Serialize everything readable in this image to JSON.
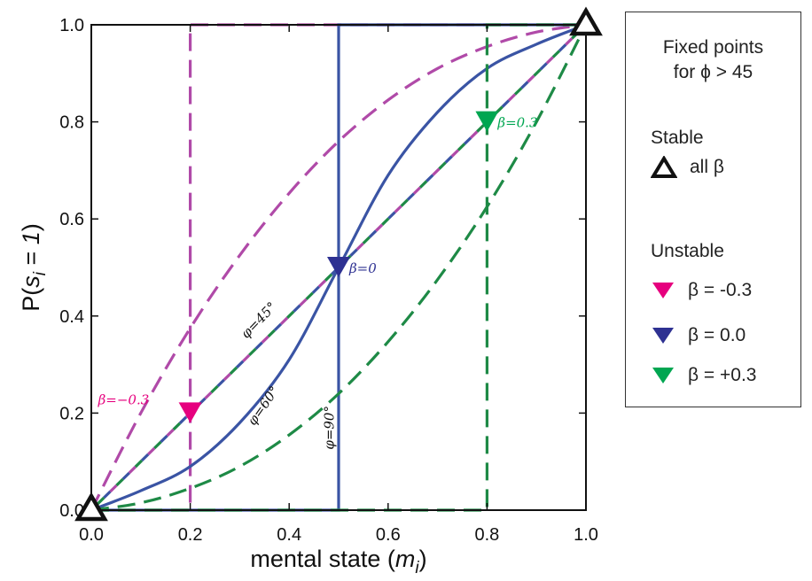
{
  "chart_data": {
    "type": "line",
    "xlabel": "mental state (m_i)",
    "ylabel": "P(s_i = 1)",
    "xlim": [
      0,
      1
    ],
    "ylim": [
      0,
      1
    ],
    "xticks": [
      "0.0",
      "0.2",
      "0.4",
      "0.6",
      "0.8",
      "1.0"
    ],
    "yticks": [
      "0.0",
      "0.2",
      "0.4",
      "0.6",
      "0.8",
      "1.0"
    ],
    "grid": false,
    "colors": {
      "purple": "#b04aa8",
      "blue": "#3a54a4",
      "green": "#1e8a46",
      "pink": "#e6007e",
      "navy": "#2e3192",
      "bright_green": "#00a651",
      "black": "#111111"
    },
    "curve_labels": {
      "phi45": "φ=45°",
      "phi60": "φ=60°",
      "phi90": "φ=90°"
    },
    "series": [
      {
        "color": "purple",
        "dash": true,
        "x": [
          0,
          0.1,
          0.2,
          0.3,
          0.4,
          0.5,
          0.6,
          0.7,
          0.8,
          0.9,
          1.0
        ],
        "y": [
          0,
          0.2,
          0.375,
          0.525,
          0.653,
          0.76,
          0.845,
          0.91,
          0.955,
          0.985,
          1.0
        ]
      },
      {
        "color": "purple",
        "dash": true,
        "x": [
          0,
          0.2,
          0.5,
          0.8,
          1.0
        ],
        "y": [
          0,
          0.2,
          0.5,
          0.8,
          1.0
        ]
      },
      {
        "color": "purple",
        "dash": true,
        "x": [
          0,
          0.2,
          0.2,
          1.0
        ],
        "y": [
          0,
          0,
          1,
          1
        ]
      },
      {
        "color": "blue",
        "dash": false,
        "x": [
          0,
          0.1,
          0.2,
          0.3,
          0.4,
          0.5,
          0.6,
          0.7,
          0.8,
          0.9,
          1.0
        ],
        "y": [
          0,
          0.04,
          0.09,
          0.18,
          0.31,
          0.5,
          0.69,
          0.82,
          0.91,
          0.96,
          1.0
        ]
      },
      {
        "color": "blue",
        "dash": true,
        "x": [
          0,
          0.2,
          0.5,
          0.8,
          1.0
        ],
        "y": [
          0,
          0.2,
          0.5,
          0.8,
          1.0
        ]
      },
      {
        "color": "blue",
        "dash": false,
        "x": [
          0,
          0.5,
          0.5,
          1.0
        ],
        "y": [
          0,
          0,
          1,
          1
        ]
      },
      {
        "color": "green",
        "dash": true,
        "x": [
          0,
          0.1,
          0.2,
          0.3,
          0.4,
          0.5,
          0.6,
          0.7,
          0.8,
          0.9,
          1.0
        ],
        "y": [
          0,
          0.015,
          0.045,
          0.09,
          0.155,
          0.24,
          0.347,
          0.475,
          0.625,
          0.8,
          1.0
        ]
      },
      {
        "color": "green",
        "dash": true,
        "x": [
          0,
          0.2,
          0.5,
          0.8,
          1.0
        ],
        "y": [
          0,
          0.2,
          0.5,
          0.8,
          1.0
        ]
      },
      {
        "color": "green",
        "dash": true,
        "x": [
          0,
          0.8,
          0.8,
          1.0
        ],
        "y": [
          0,
          0,
          1,
          1
        ]
      }
    ],
    "fixed_points": {
      "stable": [
        {
          "x": 0,
          "y": 0
        },
        {
          "x": 1,
          "y": 1
        }
      ],
      "unstable": [
        {
          "x": 0.2,
          "y": 0.2,
          "color": "pink",
          "label": "β=−0.3"
        },
        {
          "x": 0.5,
          "y": 0.5,
          "color": "navy",
          "label": "β=0"
        },
        {
          "x": 0.8,
          "y": 0.8,
          "color": "bright_green",
          "label": "β=0.3"
        }
      ]
    }
  },
  "legend": {
    "title": "Fixed points\n  for ϕ > 45",
    "stable_heading": "Stable",
    "stable_label": "all β",
    "unstable_heading": "Unstable",
    "entries": [
      {
        "label": "β = -0.3",
        "color": "pink"
      },
      {
        "label": "β = 0.0",
        "color": "navy"
      },
      {
        "label": "β = +0.3",
        "color": "bright_green"
      }
    ]
  }
}
